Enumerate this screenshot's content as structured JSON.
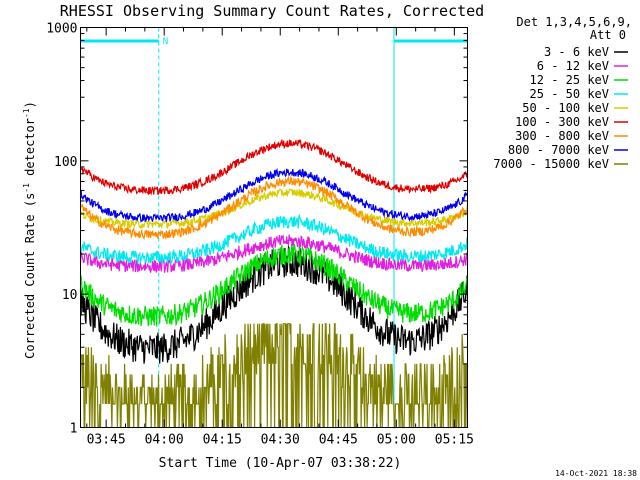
{
  "chart_data": {
    "type": "line",
    "title": "RHESSI Observing Summary Count Rates, Corrected",
    "xlabel": "Start Time (10-Apr-07 03:38:22)",
    "ylabel_parts": {
      "base": "Corrected Count Rate (s",
      "sup1": "-1",
      "mid": " detector",
      "sup2": "-1",
      "end": ")"
    },
    "yscale": "log",
    "ylim": [
      1,
      1000
    ],
    "xlim_min": [
      218.37,
      318.4
    ],
    "x_ticks": [
      {
        "min": 225,
        "label": "03:45"
      },
      {
        "min": 240,
        "label": "04:00"
      },
      {
        "min": 255,
        "label": "04:15"
      },
      {
        "min": 270,
        "label": "04:30"
      },
      {
        "min": 285,
        "label": "04:45"
      },
      {
        "min": 300,
        "label": "05:00"
      },
      {
        "min": 315,
        "label": "05:15"
      }
    ],
    "y_ticks": [
      {
        "value": 1,
        "label": "1"
      },
      {
        "value": 10,
        "label": "10"
      },
      {
        "value": 100,
        "label": "100"
      },
      {
        "value": 1000,
        "label": "1000"
      }
    ],
    "legend_header": [
      "Det 1,3,4,5,6,9,",
      "Att 0"
    ],
    "series": [
      {
        "name": "3 - 6 keV",
        "color": "#000000",
        "base": 3.6,
        "peak": 17.5,
        "ends": [
          9.0,
          11.0
        ],
        "noise": 0.12
      },
      {
        "name": "6 - 12 keV",
        "color": "#e020e0",
        "base": 16.0,
        "peak": 25.0,
        "ends": [
          19.0,
          18.5
        ],
        "noise": 0.05
      },
      {
        "name": "12 - 25 keV",
        "color": "#00dd00",
        "base": 6.5,
        "peak": 20.0,
        "ends": [
          12.0,
          11.5
        ],
        "noise": 0.08
      },
      {
        "name": "25 - 50 keV",
        "color": "#00e8f0",
        "base": 18.5,
        "peak": 35.0,
        "ends": [
          23.0,
          24.0
        ],
        "noise": 0.05
      },
      {
        "name": "50 - 100 keV",
        "color": "#d8cc00",
        "base": 33.0,
        "peak": 58.0,
        "ends": [
          40.0,
          42.0
        ],
        "noise": 0.03
      },
      {
        "name": "100 - 300 keV",
        "color": "#e00000",
        "base": 58.0,
        "peak": 135.0,
        "ends": [
          90.0,
          80.0
        ],
        "noise": 0.03
      },
      {
        "name": "300 - 800 keV",
        "color": "#ff8c00",
        "base": 27.0,
        "peak": 70.0,
        "ends": [
          46.0,
          45.0
        ],
        "noise": 0.035
      },
      {
        "name": "800 - 7000 keV",
        "color": "#0000ee",
        "base": 36.0,
        "peak": 82.0,
        "ends": [
          57.0,
          55.0
        ],
        "noise": 0.03
      },
      {
        "name": "7000 - 15000 keV",
        "color": "#808000",
        "base": 1.5,
        "peak": 5.0,
        "ends": [
          3.0,
          3.5
        ],
        "noise": 0.25
      }
    ],
    "night_intervals": [
      [
        218.37,
        238.6
      ],
      [
        299.4,
        318.4
      ]
    ],
    "annotation_label": "N",
    "footer_date": "14-Oct-2021 18:38"
  },
  "colors": {
    "night_marker": "#00e8f0",
    "axis": "#000000"
  }
}
